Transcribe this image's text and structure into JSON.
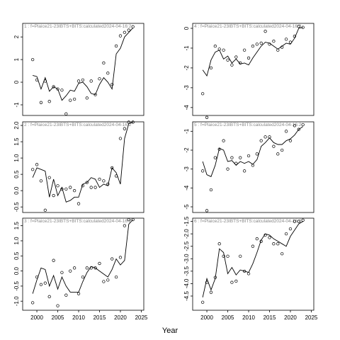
{
  "xaxis": {
    "label": "Year",
    "ticks": [
      2000,
      2005,
      2010,
      2015,
      2020,
      2025
    ]
  },
  "chart_data": [
    {
      "type": "line",
      "title": "1 : f=Plaice21-23IBTS+BITS:calculated2024-04-16:2",
      "x": [
        1999,
        2000,
        2001,
        2002,
        2003,
        2004,
        2005,
        2006,
        2007,
        2008,
        2009,
        2010,
        2011,
        2012,
        2013,
        2014,
        2015,
        2016,
        2017,
        2018,
        2019,
        2020,
        2021,
        2022,
        2023
      ],
      "xlim": [
        1996.6,
        2025.6
      ],
      "observed": [
        1.0,
        0.1,
        -0.9,
        0.05,
        -0.85,
        -0.2,
        -0.3,
        -0.35,
        -1.4,
        -0.8,
        -0.75,
        0.05,
        0.1,
        -0.7,
        0.05,
        -0.55,
        0.15,
        0.85,
        0.4,
        -0.1,
        1.6,
        2.05,
        2.2,
        2.3,
        2.45
      ],
      "fitted": [
        0.3,
        0.25,
        -0.3,
        0.2,
        -0.4,
        -0.2,
        -0.3,
        -0.8,
        -0.6,
        -0.35,
        -0.4,
        -0.05,
        0.0,
        -0.2,
        -0.5,
        -0.55,
        -0.1,
        0.2,
        0.0,
        -0.3,
        1.25,
        1.5,
        2.0,
        2.2,
        2.4
      ],
      "ylim": [
        -1.47,
        2.6
      ],
      "yticks": [
        -1,
        0,
        1,
        2
      ]
    },
    {
      "type": "line",
      "title": "2 : f=Plaice21-23IBTS+BITS:calculated2024-04-16:2",
      "x": [
        1999,
        2000,
        2001,
        2002,
        2003,
        2004,
        2005,
        2006,
        2007,
        2008,
        2009,
        2010,
        2011,
        2012,
        2013,
        2014,
        2015,
        2016,
        2017,
        2018,
        2019,
        2020,
        2021,
        2022,
        2023
      ],
      "xlim": [
        1996.6,
        2025.6
      ],
      "observed": [
        0.65,
        0.8,
        0.3,
        -0.6,
        0.4,
        -0.15,
        0.15,
        0.05,
        0.05,
        0.1,
        0.0,
        -0.4,
        0.15,
        0.25,
        0.1,
        0.1,
        0.35,
        0.3,
        0.2,
        0.7,
        0.45,
        1.6,
        1.9,
        2.1,
        2.1
      ],
      "fitted": [
        0.4,
        0.7,
        0.65,
        0.6,
        -0.2,
        0.35,
        -0.15,
        0.1,
        -0.35,
        -0.3,
        -0.2,
        -0.2,
        0.2,
        0.25,
        0.4,
        0.35,
        0.1,
        0.2,
        0.15,
        0.7,
        0.55,
        0.2,
        1.6,
        2.05,
        2.1
      ],
      "ylim": [
        -0.67,
        2.11
      ],
      "yticks": [
        -0.5,
        {
          "value": 0,
          "label": "0.0"
        },
        0.5,
        {
          "value": 1,
          "label": "1.0"
        },
        1.5,
        {
          "value": 2,
          "label": "2.0"
        }
      ]
    },
    {
      "type": "line",
      "title": "3 : f=Plaice21-23IBTS+BITS:calculated2024-04-16:2",
      "x": [
        1999,
        2000,
        2001,
        2002,
        2003,
        2004,
        2005,
        2006,
        2007,
        2008,
        2009,
        2010,
        2011,
        2012,
        2013,
        2014,
        2015,
        2016,
        2017,
        2018,
        2019,
        2020,
        2021,
        2022,
        2023
      ],
      "xlim": [
        1996.6,
        2025.6
      ],
      "observed": [
        -1.05,
        -0.2,
        -0.45,
        -0.4,
        -0.85,
        0.35,
        -1.15,
        -0.05,
        -0.8,
        0.0,
        0.1,
        -0.75,
        -0.2,
        0.1,
        0.1,
        0.1,
        0.25,
        -0.35,
        -0.3,
        0.4,
        -0.2,
        0.45,
        1.5,
        1.7,
        1.7
      ],
      "fitted": [
        -0.75,
        -0.3,
        0.1,
        0.05,
        -0.5,
        -0.15,
        -0.6,
        -0.2,
        -0.5,
        -0.7,
        -0.7,
        -0.7,
        -0.35,
        -0.05,
        0.15,
        0.1,
        0.0,
        -0.1,
        -0.2,
        0.05,
        0.4,
        0.2,
        0.35,
        1.55,
        1.7
      ],
      "ylim": [
        -1.3,
        1.75
      ],
      "yticks": [
        {
          "value": -1,
          "label": "-1.0"
        },
        -0.5,
        {
          "value": 0,
          "label": "0.0"
        },
        0.5,
        {
          "value": 1,
          "label": "1.0"
        },
        1.5
      ]
    },
    {
      "type": "line",
      "title": "4 : f=Plaice21-23IBTS+BITS:calculated2024-04-16:2",
      "x": [
        1999,
        2000,
        2001,
        2002,
        2003,
        2004,
        2005,
        2006,
        2007,
        2008,
        2009,
        2010,
        2011,
        2012,
        2013,
        2014,
        2015,
        2016,
        2017,
        2018,
        2019,
        2020,
        2021,
        2022,
        2023
      ],
      "xlim": [
        1996.6,
        2025.6
      ],
      "observed": [
        -3.3,
        -4.5,
        -2.0,
        -0.9,
        -1.05,
        -1.1,
        -1.6,
        -1.85,
        -1.45,
        -1.75,
        -1.1,
        -1.5,
        -0.9,
        -0.8,
        -0.75,
        -0.15,
        -0.8,
        -0.65,
        -1.1,
        -0.95,
        -0.55,
        -0.7,
        -0.4,
        0.1,
        0.05
      ],
      "fitted": [
        -2.1,
        -2.4,
        -1.6,
        -1.2,
        -1.1,
        -1.55,
        -1.4,
        -1.75,
        -1.55,
        -1.8,
        -1.75,
        -1.85,
        -1.5,
        -1.2,
        -0.9,
        -0.7,
        -0.75,
        -0.9,
        -1.05,
        -0.9,
        -0.75,
        -0.8,
        -0.5,
        0.0,
        0.05
      ],
      "ylim": [
        -4.4,
        0.25
      ],
      "yticks": [
        -4,
        -3,
        -2,
        -1,
        0
      ]
    },
    {
      "type": "line",
      "title": "5 : f=Plaice21-23IBTS+BITS:calculated2024-04-16:2",
      "x": [
        1999,
        2000,
        2001,
        2002,
        2003,
        2004,
        2005,
        2006,
        2007,
        2008,
        2009,
        2010,
        2011,
        2012,
        2013,
        2014,
        2015,
        2016,
        2017,
        2018,
        2019,
        2020,
        2021,
        2022,
        2023
      ],
      "xlim": [
        1996.6,
        2025.6
      ],
      "observed": [
        -3.1,
        -5.2,
        -4.1,
        -2.4,
        -1.95,
        -1.5,
        -3.0,
        -2.4,
        -2.7,
        -2.4,
        -3.1,
        -2.3,
        -2.8,
        -2.2,
        -1.5,
        -1.3,
        -1.3,
        -1.8,
        -2.2,
        -2.0,
        -1.0,
        -1.5,
        -0.7,
        -0.9,
        -0.65
      ],
      "fitted": [
        -2.6,
        -3.3,
        -3.4,
        -2.8,
        -1.9,
        -2.0,
        -2.6,
        -2.55,
        -2.8,
        -2.6,
        -2.7,
        -2.6,
        -2.75,
        -2.5,
        -1.8,
        -1.6,
        -1.35,
        -1.6,
        -1.7,
        -1.7,
        -1.5,
        -1.4,
        -1.2,
        -0.9,
        -0.75
      ],
      "ylim": [
        -5.3,
        -0.5
      ],
      "yticks": [
        -5,
        -4,
        -3,
        -2,
        -1
      ]
    },
    {
      "type": "line",
      "title": "6 : f=Plaice21-23IBTS+BITS:calculated2024-04-16:2",
      "x": [
        1999,
        2000,
        2001,
        2002,
        2003,
        2004,
        2005,
        2006,
        2007,
        2008,
        2009,
        2010,
        2011,
        2012,
        2013,
        2014,
        2015,
        2016,
        2017,
        2018,
        2019,
        2020,
        2021,
        2022,
        2023
      ],
      "xlim": [
        1996.6,
        2025.6
      ],
      "observed": [
        -4.75,
        -3.95,
        -4.35,
        -3.75,
        -2.4,
        -2.9,
        -2.9,
        -3.95,
        -3.9,
        -2.9,
        -3.5,
        -3.6,
        -2.5,
        -2.2,
        -2.3,
        -2.05,
        -2.15,
        -2.4,
        -2.4,
        -2.8,
        -2.0,
        -1.8,
        -1.5,
        -1.5,
        -1.45
      ],
      "fitted": [
        -4.55,
        -3.8,
        -4.25,
        -3.8,
        -2.6,
        -2.75,
        -3.6,
        -3.35,
        -3.65,
        -3.45,
        -3.5,
        -3.55,
        -3.2,
        -2.75,
        -2.25,
        -2.0,
        -2.05,
        -2.2,
        -2.3,
        -2.4,
        -2.5,
        -2.1,
        -1.85,
        -1.6,
        -1.5
      ],
      "ylim": [
        -5.07,
        -1.37
      ],
      "yticks": [
        -4.5,
        {
          "value": -4,
          "label": "-4.0"
        },
        -3.5,
        {
          "value": -3,
          "label": "-3.0"
        },
        -2.5,
        {
          "value": -2,
          "label": "-2.0"
        },
        -1.5
      ]
    }
  ]
}
